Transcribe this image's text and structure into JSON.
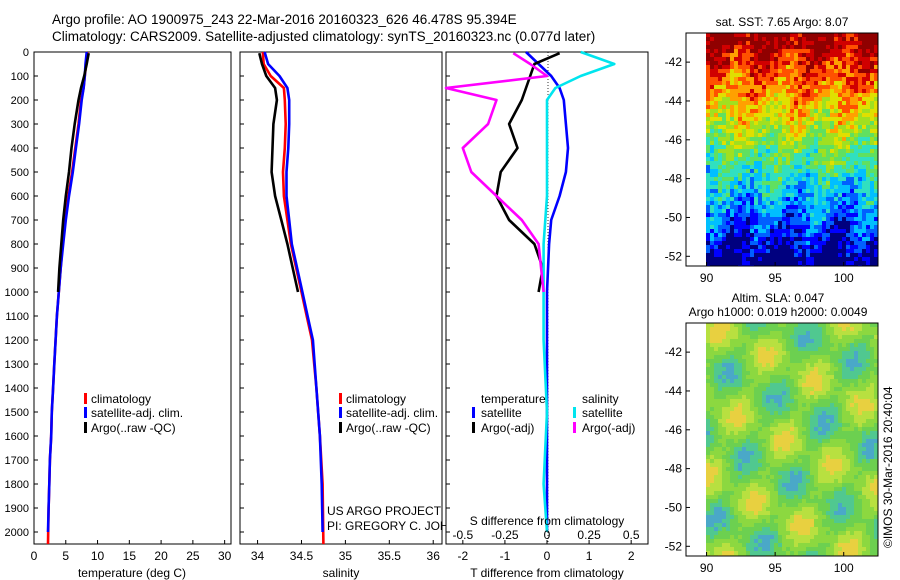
{
  "header": {
    "line1": "Argo profile: AO 1900975_243 22-Mar-2016 20160323_626 46.478S 95.394E",
    "line2": "Climatology: CARS2009. Satellite-adjusted climatology: synTS_20160323.nc (0.077d later)"
  },
  "colors": {
    "climatology": "#ff0000",
    "satellite": "#0000ff",
    "argo": "#000000",
    "sal_satellite": "#00e5ee",
    "sal_argo": "#ff00ff"
  },
  "credits": {
    "line1": "US ARGO PROJECT",
    "line2": "PI: GREGORY C. JOHNSON"
  },
  "timestamp": "©IMOS 30-Mar-2016 20:40:04",
  "legend_temp": {
    "climatology": "climatology",
    "satellite": "satellite-adj. clim.",
    "argo": "Argo(..raw -QC)"
  },
  "legend_sal": {
    "climatology": "climatology",
    "satellite": "satellite-adj. clim.",
    "argo": "Argo(..raw -QC)"
  },
  "legend_diff": {
    "temp_title": "temperature",
    "sal_title": "salinity",
    "temp_sat": "satellite",
    "temp_argo": "Argo(-adj)",
    "sal_sat": "satellite",
    "sal_argo": "Argo(-adj)"
  },
  "chart_data": [
    {
      "type": "line",
      "id": "temperature",
      "xlabel": "temperature (deg C)",
      "ylabel": "",
      "xlim": [
        0,
        31
      ],
      "ylim": [
        2050,
        0
      ],
      "xticks": [
        0,
        5,
        10,
        15,
        20,
        25,
        30
      ],
      "yticks": [
        0,
        100,
        200,
        300,
        400,
        500,
        600,
        700,
        800,
        900,
        1000,
        1100,
        1200,
        1300,
        1400,
        1500,
        1600,
        1700,
        1800,
        1900,
        2000
      ],
      "series": [
        {
          "name": "climatology",
          "color": "#ff0000",
          "x": [
            8.4,
            8.2,
            8.0,
            7.8,
            7.4,
            7.0,
            6.5,
            6.0,
            5.4,
            4.9,
            4.5,
            4.2,
            3.9,
            3.6,
            3.4,
            3.2,
            3.0,
            2.8,
            2.7,
            2.5,
            2.4,
            2.3,
            2.2
          ],
          "y": [
            0,
            50,
            100,
            150,
            200,
            300,
            400,
            500,
            600,
            700,
            800,
            900,
            1000,
            1100,
            1200,
            1300,
            1400,
            1500,
            1600,
            1700,
            1800,
            1900,
            2050
          ]
        },
        {
          "name": "satellite-adj. clim.",
          "color": "#0000ff",
          "x": [
            8.3,
            8.1,
            8.0,
            7.8,
            7.5,
            7.1,
            6.6,
            6.1,
            5.5,
            5.0,
            4.6,
            4.2,
            3.9,
            3.6,
            3.4,
            3.2,
            3.0,
            2.8,
            2.7,
            2.5,
            2.4,
            2.3,
            2.2
          ],
          "y": [
            0,
            50,
            100,
            150,
            200,
            300,
            400,
            500,
            600,
            700,
            800,
            900,
            1000,
            1100,
            1200,
            1300,
            1400,
            1500,
            1600,
            1700,
            1800,
            1900,
            2000
          ]
        },
        {
          "name": "Argo(..raw -QC)",
          "color": "#000000",
          "x": [
            8.6,
            8.3,
            7.9,
            7.4,
            7.0,
            6.4,
            5.9,
            5.5,
            5.0,
            4.6,
            4.3,
            4.0,
            3.8
          ],
          "y": [
            5,
            50,
            100,
            150,
            200,
            300,
            400,
            500,
            600,
            700,
            800,
            900,
            1000
          ]
        }
      ]
    },
    {
      "type": "line",
      "id": "salinity",
      "xlabel": "salinity",
      "ylabel": "",
      "xlim": [
        33.8,
        36.1
      ],
      "ylim": [
        2050,
        0
      ],
      "xticks": [
        34,
        34.5,
        35,
        35.5,
        36
      ],
      "series": [
        {
          "name": "climatology",
          "color": "#ff0000",
          "x": [
            34.06,
            34.07,
            34.15,
            34.3,
            34.31,
            34.32,
            34.31,
            34.29,
            34.3,
            34.34,
            34.38,
            34.44,
            34.5,
            34.56,
            34.62,
            34.67,
            34.71,
            34.74,
            34.75
          ],
          "y": [
            0,
            50,
            100,
            150,
            200,
            300,
            400,
            500,
            600,
            700,
            800,
            900,
            1000,
            1100,
            1200,
            1400,
            1600,
            1800,
            2050
          ]
        },
        {
          "name": "satellite-adj. clim.",
          "color": "#0000ff",
          "x": [
            34.08,
            34.12,
            34.25,
            34.34,
            34.36,
            34.36,
            34.35,
            34.33,
            34.33,
            34.36,
            34.39,
            34.45,
            34.51,
            34.57,
            34.63,
            34.67,
            34.71,
            34.73,
            34.74
          ],
          "y": [
            0,
            50,
            100,
            150,
            200,
            300,
            400,
            500,
            600,
            700,
            800,
            900,
            1000,
            1100,
            1200,
            1400,
            1600,
            1800,
            2000
          ]
        },
        {
          "name": "Argo(..raw -QC)",
          "color": "#000000",
          "x": [
            34.02,
            34.05,
            34.1,
            34.2,
            34.22,
            34.18,
            34.17,
            34.16,
            34.2,
            34.27,
            34.34,
            34.4,
            34.46
          ],
          "y": [
            5,
            50,
            100,
            150,
            200,
            300,
            400,
            500,
            600,
            700,
            800,
            900,
            1000
          ]
        }
      ]
    },
    {
      "type": "line",
      "id": "difference",
      "xlabel": "T difference from climatology",
      "xlabel_top": "S difference from climatology",
      "xlim": [
        -2.4,
        2.4
      ],
      "ylim": [
        2050,
        0
      ],
      "xticks": [
        -2,
        -1,
        0,
        1,
        2
      ],
      "xticks_s": [
        -0.5,
        -0.25,
        0,
        0.25,
        0.5
      ],
      "series": [
        {
          "name": "T satellite",
          "color": "#0000ff",
          "x": [
            -0.5,
            -0.2,
            0.1,
            0.3,
            0.4,
            0.45,
            0.5,
            0.45,
            0.3,
            0.1,
            0.05,
            0.0,
            0.0,
            0.0
          ],
          "y": [
            0,
            50,
            100,
            150,
            200,
            300,
            400,
            500,
            600,
            700,
            800,
            1000,
            1500,
            2000
          ]
        },
        {
          "name": "T Argo(-adj)",
          "color": "#000000",
          "x": [
            0.3,
            -0.3,
            -0.4,
            -0.5,
            -0.6,
            -0.9,
            -0.7,
            -1.1,
            -1.2,
            -0.9,
            -0.3,
            -0.1,
            -0.2
          ],
          "y": [
            5,
            50,
            100,
            150,
            200,
            300,
            400,
            500,
            600,
            700,
            800,
            900,
            1000
          ]
        },
        {
          "name": "S satellite",
          "color": "#00e5ee",
          "x": [
            0.2,
            0.4,
            0.2,
            0.05,
            0.0,
            0.0,
            0.0,
            -0.02,
            -0.02,
            -0.02,
            0.0,
            -0.02,
            0.0
          ],
          "y": [
            0,
            50,
            100,
            150,
            200,
            400,
            600,
            800,
            1000,
            1200,
            1500,
            1800,
            2000
          ]
        },
        {
          "name": "S Argo(-adj)",
          "color": "#ff00ff",
          "x": [
            -0.2,
            -0.1,
            0.0,
            -0.6,
            -0.3,
            -0.35,
            -0.5,
            -0.45,
            -0.3,
            -0.15,
            -0.05,
            -0.02
          ],
          "y": [
            5,
            50,
            100,
            150,
            200,
            300,
            400,
            500,
            600,
            700,
            800,
            1000
          ]
        }
      ]
    },
    {
      "type": "heatmap",
      "id": "sst-map",
      "title": "sat. SST: 7.65 Argo: 8.07",
      "xlim": [
        88.5,
        102.5
      ],
      "ylim": [
        -52.5,
        -40.5
      ],
      "xticks": [
        90,
        95,
        100
      ],
      "yticks": [
        -42,
        -44,
        -46,
        -48,
        -50,
        -52
      ]
    },
    {
      "type": "heatmap",
      "id": "sla-map",
      "title": "Altim. SLA: 0.047",
      "subtitle": "Argo h1000: 0.019 h2000: 0.0049",
      "xlim": [
        88.5,
        102.5
      ],
      "ylim": [
        -52.5,
        -40.5
      ],
      "xticks": [
        90,
        95,
        100
      ],
      "yticks": [
        -42,
        -44,
        -46,
        -48,
        -50,
        -52
      ]
    }
  ]
}
